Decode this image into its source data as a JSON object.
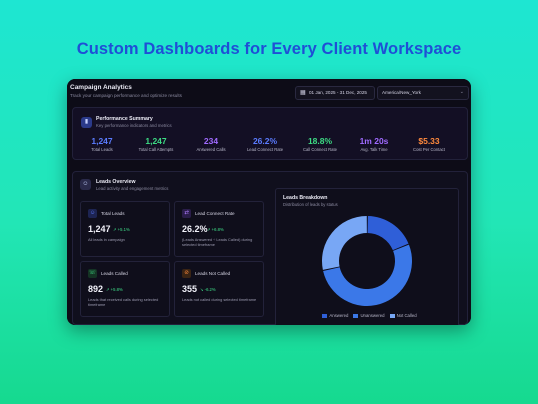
{
  "headline": "Custom Dashboards for Every Client Workspace",
  "app": {
    "title": "Campaign Analytics",
    "subtitle": "Track your campaign performance and optimize results",
    "date_range": "01 Jan, 2025 - 31 Dec, 2025",
    "timezone": "America/New_York"
  },
  "performance": {
    "title": "Performance Summary",
    "subtitle": "Key performance indicators and metrics",
    "metrics": [
      {
        "value": "1,247",
        "label": "Total Leads",
        "color": "#5b7cff"
      },
      {
        "value": "1,247",
        "label": "Total Call Attempts",
        "color": "#3ddc84"
      },
      {
        "value": "234",
        "label": "Answered Calls",
        "color": "#a06bff"
      },
      {
        "value": "26.2%",
        "label": "Lead Connect Rate",
        "color": "#5b7cff"
      },
      {
        "value": "18.8%",
        "label": "Call Connect Rate",
        "color": "#3ddc84"
      },
      {
        "value": "1m 20s",
        "label": "Avg. Talk Time",
        "color": "#a06bff"
      },
      {
        "value": "$5.33",
        "label": "Cost Per Contact",
        "color": "#ff8a3d"
      }
    ]
  },
  "leads_overview": {
    "title": "Leads Overview",
    "subtitle": "Lead activity and engagement metrics",
    "cards": [
      {
        "title": "Total Leads",
        "value": "1,247",
        "delta": "↗ +5.1%",
        "desc": "All leads in campaign",
        "icon_color": "#5b7cff",
        "icon_bg": "#1d2452"
      },
      {
        "title": "Lead Connect Rate",
        "value": "26.2%",
        "delta": "↗ +6.8%",
        "desc": "(Leads Answered ÷ Leads Called) during selected timeframe",
        "icon_color": "#b07cff",
        "icon_bg": "#2a1d4a"
      },
      {
        "title": "Leads Called",
        "value": "892",
        "delta": "↗ +5.8%",
        "desc": "Leads that received calls during selected timeframe",
        "icon_color": "#3ddc84",
        "icon_bg": "#143324"
      },
      {
        "title": "Leads Not Called",
        "value": "355",
        "delta": "↘ -6.2%",
        "desc": "Leads not called during selected timeframe",
        "icon_color": "#ff8a3d",
        "icon_bg": "#3a2414"
      }
    ]
  },
  "breakdown": {
    "title": "Leads Breakdown",
    "subtitle": "Distribution of leads by status"
  },
  "chart_data": {
    "type": "pie",
    "categories": [
      "Answered",
      "Unanswered",
      "Not Called"
    ],
    "values": [
      234,
      658,
      355
    ],
    "colors": [
      "#2f5fd8",
      "#3b78e8",
      "#78a7f5"
    ],
    "legend": "bottom"
  }
}
